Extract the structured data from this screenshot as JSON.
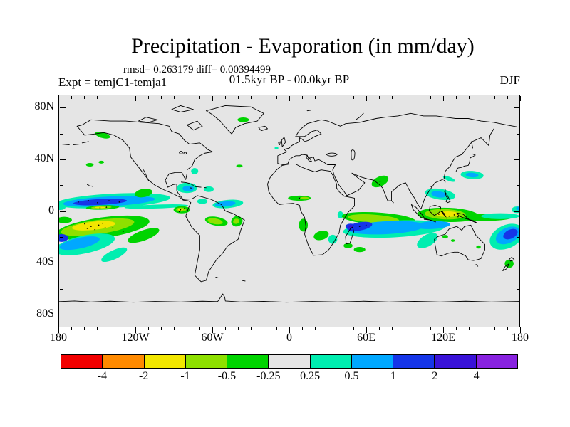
{
  "chart_data": {
    "type": "heatmap",
    "subtype": "filled_contour_world_map",
    "title": "Precipitation - Evaporation (in mm/day)",
    "stats_line": "rmsd= 0.263179 diff= 0.00394499",
    "experiment_label": "Expt = temjC1-temja1",
    "period_label": "01.5kyr BP - 00.0kyr BP",
    "season_label": "DJF",
    "units": "mm/day",
    "projection": "equirectangular",
    "lon_range": [
      -180,
      180
    ],
    "lat_range": [
      -90,
      90
    ],
    "map_background": "#e5e5e5",
    "grid": "off",
    "x_axis": {
      "minor_tick_step_deg": 10,
      "major_tick_step_deg": 60,
      "tick_labels": [
        {
          "label": "180",
          "lon": -180
        },
        {
          "label": "120W",
          "lon": -120
        },
        {
          "label": "60W",
          "lon": -60
        },
        {
          "label": "0",
          "lon": 0
        },
        {
          "label": "60E",
          "lon": 60
        },
        {
          "label": "120E",
          "lon": 120
        },
        {
          "label": "180",
          "lon": 180
        }
      ]
    },
    "y_axis": {
      "minor_tick_step_deg": 20,
      "major_tick_step_deg": 40,
      "tick_labels": [
        {
          "label": "80N",
          "lat": 80
        },
        {
          "label": "40N",
          "lat": 40
        },
        {
          "label": "0",
          "lat": 0
        },
        {
          "label": "40S",
          "lat": -40
        },
        {
          "label": "80S",
          "lat": -80
        }
      ]
    },
    "palette": {
      "red": "#f20000",
      "orange": "#ff8a00",
      "yellow": "#f2e600",
      "chartreuse": "#8ee000",
      "green": "#00d400",
      "neutral": "#e5e5e5",
      "cyan": "#00eeb0",
      "skyblue": "#00a8ff",
      "blue": "#1535e8",
      "indigo": "#3912d8",
      "violet": "#8822e0"
    },
    "colorbar": {
      "segment_colors": [
        "red",
        "orange",
        "yellow",
        "chartreuse",
        "green",
        "neutral",
        "cyan",
        "skyblue",
        "blue",
        "indigo",
        "violet"
      ],
      "boundary_labels": [
        "-4",
        "-2",
        "-1",
        "-0.5",
        "-0.25",
        "0.25",
        "0.5",
        "1",
        "2",
        "4"
      ],
      "bin_ranges": [
        "< -4",
        "-4 to -2",
        "-2 to -1",
        "-1 to -0.5",
        "-0.5 to -0.25",
        "-0.25 to 0.25",
        "0.25 to 0.5",
        "0.5 to 1",
        "1 to 2",
        "2 to 4",
        "> 4"
      ]
    },
    "color_to_bin": {
      "yellow": "-2 to -1",
      "chartreuse": "-1 to -0.5",
      "green": "-0.5 to -0.25",
      "cyan": "0.25 to 0.5",
      "skyblue": "0.5 to 1",
      "blue": "1 to 2",
      "indigo": "2 to 4"
    },
    "anomaly_regions": [
      {
        "lon": -138,
        "lat": 8,
        "rx": 45,
        "ry": 5.5,
        "rot": -3,
        "color": "cyan"
      },
      {
        "lon": -141,
        "lat": 7.5,
        "rx": 36,
        "ry": 3.8,
        "rot": -3,
        "color": "skyblue"
      },
      {
        "lon": -148,
        "lat": 7,
        "rx": 21,
        "ry": 2.3,
        "rot": -3,
        "color": "blue"
      },
      {
        "lon": -104,
        "lat": 3.5,
        "rx": 25,
        "ry": 1.5,
        "rot": -2,
        "color": "cyan"
      },
      {
        "lon": -146,
        "lat": 2.8,
        "rx": 13,
        "ry": 1.7,
        "rot": -2,
        "color": "green"
      },
      {
        "lon": -147,
        "lat": 2.8,
        "rx": 8,
        "ry": 1,
        "rot": -2,
        "color": "chartreuse"
      },
      {
        "lon": -148,
        "lat": 2.8,
        "rx": 4,
        "ry": 0.5,
        "rot": 0,
        "color": "yellow"
      },
      {
        "lon": -114,
        "lat": 14,
        "rx": 7,
        "ry": 3.2,
        "rot": -10,
        "color": "green"
      },
      {
        "lon": -84,
        "lat": 1,
        "rx": 6.5,
        "ry": 2.8,
        "rot": 0,
        "color": "green"
      },
      {
        "lon": -84.5,
        "lat": 1.2,
        "rx": 4,
        "ry": 1.6,
        "rot": 0,
        "color": "chartreuse"
      },
      {
        "lon": -85,
        "lat": 1.2,
        "rx": 2,
        "ry": 0.8,
        "rot": 0,
        "color": "yellow"
      },
      {
        "lon": -146,
        "lat": -13,
        "rx": 37,
        "ry": 8,
        "rot": -8,
        "color": "green"
      },
      {
        "lon": -150,
        "lat": -12.5,
        "rx": 29,
        "ry": 5.5,
        "rot": -8,
        "color": "chartreuse"
      },
      {
        "lon": -153,
        "lat": -11.5,
        "rx": 17,
        "ry": 3.2,
        "rot": -6,
        "color": "yellow"
      },
      {
        "lon": -114,
        "lat": -19,
        "rx": 13,
        "ry": 4,
        "rot": -20,
        "color": "green"
      },
      {
        "lon": -176,
        "lat": -7,
        "rx": 6,
        "ry": 2.5,
        "rot": 0,
        "color": "green"
      },
      {
        "lon": -160,
        "lat": -26,
        "rx": 24,
        "ry": 7,
        "rot": -12,
        "color": "cyan"
      },
      {
        "lon": -164,
        "lat": -25,
        "rx": 16,
        "ry": 4.2,
        "rot": -12,
        "color": "skyblue"
      },
      {
        "lon": -178,
        "lat": -21,
        "rx": 5,
        "ry": 3,
        "rot": 0,
        "color": "blue"
      },
      {
        "lon": -137,
        "lat": -34,
        "rx": 11,
        "ry": 3.5,
        "rot": -25,
        "color": "cyan"
      },
      {
        "lon": -179,
        "lat": 3,
        "rx": 4,
        "ry": 2.2,
        "rot": 0,
        "color": "cyan"
      },
      {
        "lon": -80,
        "lat": 18,
        "rx": 8,
        "ry": 4,
        "rot": 0,
        "color": "cyan"
      },
      {
        "lon": -79,
        "lat": 17.5,
        "rx": 4.5,
        "ry": 2.2,
        "rot": 0,
        "color": "skyblue"
      },
      {
        "lon": -63,
        "lat": 17,
        "rx": 4,
        "ry": 2.2,
        "rot": 0,
        "color": "cyan"
      },
      {
        "lon": -74,
        "lat": 31,
        "rx": 2.8,
        "ry": 2.5,
        "rot": 0,
        "color": "cyan"
      },
      {
        "lon": -48,
        "lat": 5.5,
        "rx": 12,
        "ry": 3.2,
        "rot": -5,
        "color": "cyan"
      },
      {
        "lon": -50,
        "lat": 5.5,
        "rx": 8,
        "ry": 2,
        "rot": -5,
        "color": "skyblue"
      },
      {
        "lon": -68,
        "lat": 7.5,
        "rx": 4,
        "ry": 2,
        "rot": 0,
        "color": "cyan"
      },
      {
        "lon": -57,
        "lat": -8,
        "rx": 9,
        "ry": 3.4,
        "rot": 10,
        "color": "green"
      },
      {
        "lon": -58,
        "lat": -8,
        "rx": 6,
        "ry": 2.2,
        "rot": 10,
        "color": "chartreuse"
      },
      {
        "lon": -41,
        "lat": -8,
        "rx": 4.5,
        "ry": 4,
        "rot": -20,
        "color": "green"
      },
      {
        "lon": -41.5,
        "lat": -8,
        "rx": 2.5,
        "ry": 2,
        "rot": -20,
        "color": "chartreuse"
      },
      {
        "lon": -156,
        "lat": 36,
        "rx": 3,
        "ry": 1.4,
        "rot": 0,
        "color": "green"
      },
      {
        "lon": -147,
        "lat": 38,
        "rx": 2.2,
        "ry": 1.1,
        "rot": 0,
        "color": "green"
      },
      {
        "lon": -146,
        "lat": 59,
        "rx": 6,
        "ry": 2.2,
        "rot": 15,
        "color": "green"
      },
      {
        "lon": -36,
        "lat": 71,
        "rx": 4.5,
        "ry": 1.8,
        "rot": 0,
        "color": "green"
      },
      {
        "lon": -39,
        "lat": 35,
        "rx": 2.5,
        "ry": 1.1,
        "rot": 0,
        "color": "green"
      },
      {
        "lon": -10,
        "lat": 49,
        "rx": 1.5,
        "ry": 1,
        "rot": 0,
        "color": "cyan"
      },
      {
        "lon": 8,
        "lat": 10,
        "rx": 9,
        "ry": 2,
        "rot": 0,
        "color": "green"
      },
      {
        "lon": 12,
        "lat": 10,
        "rx": 3.5,
        "ry": 1,
        "rot": 0,
        "color": "chartreuse"
      },
      {
        "lon": 11,
        "lat": -11,
        "rx": 3.5,
        "ry": 5,
        "rot": 0,
        "color": "green"
      },
      {
        "lon": 25,
        "lat": -19,
        "rx": 6,
        "ry": 3.5,
        "rot": -15,
        "color": "green"
      },
      {
        "lon": 34,
        "lat": -22,
        "rx": 3.5,
        "ry": 3.5,
        "rot": 0,
        "color": "cyan"
      },
      {
        "lon": 40,
        "lat": -3,
        "rx": 2.2,
        "ry": 2.8,
        "rot": 0,
        "color": "cyan"
      },
      {
        "lon": 71,
        "lat": 23,
        "rx": 7,
        "ry": 3.8,
        "rot": -25,
        "color": "green"
      },
      {
        "lon": 46,
        "lat": -27,
        "rx": 3.5,
        "ry": 2,
        "rot": 0,
        "color": "green"
      },
      {
        "lon": 55,
        "lat": -30,
        "rx": 4.5,
        "ry": 2,
        "rot": 0,
        "color": "green"
      },
      {
        "lon": 70,
        "lat": -6,
        "rx": 29,
        "ry": 4.8,
        "rot": 4,
        "color": "green"
      },
      {
        "lon": 66,
        "lat": -6,
        "rx": 20,
        "ry": 3.2,
        "rot": 4,
        "color": "chartreuse"
      },
      {
        "lon": 82,
        "lat": -14,
        "rx": 40,
        "ry": 6.5,
        "rot": -3,
        "color": "cyan"
      },
      {
        "lon": 76,
        "lat": -13,
        "rx": 30,
        "ry": 5,
        "rot": -3,
        "color": "skyblue"
      },
      {
        "lon": 55,
        "lat": -12,
        "rx": 10,
        "ry": 3.2,
        "rot": -10,
        "color": "blue"
      },
      {
        "lon": 48,
        "lat": -12,
        "rx": 4,
        "ry": 2.2,
        "rot": 0,
        "color": "blue"
      },
      {
        "lon": 48,
        "lat": -12,
        "rx": 2,
        "ry": 1.2,
        "rot": 0,
        "color": "indigo"
      },
      {
        "lon": 108,
        "lat": -23,
        "rx": 9,
        "ry": 4.5,
        "rot": -30,
        "color": "cyan"
      },
      {
        "lon": 124,
        "lat": -3,
        "rx": 24,
        "ry": 5.5,
        "rot": 2,
        "color": "green"
      },
      {
        "lon": 150,
        "lat": -5,
        "rx": 24,
        "ry": 2.8,
        "rot": 0,
        "color": "green"
      },
      {
        "lon": 122,
        "lat": -2.5,
        "rx": 16,
        "ry": 4,
        "rot": 2,
        "color": "chartreuse"
      },
      {
        "lon": 124,
        "lat": -2.5,
        "rx": 9,
        "ry": 2.2,
        "rot": 0,
        "color": "yellow"
      },
      {
        "lon": 118,
        "lat": 13,
        "rx": 12,
        "ry": 4.2,
        "rot": 8,
        "color": "cyan"
      },
      {
        "lon": 117,
        "lat": 13,
        "rx": 6,
        "ry": 2.4,
        "rot": 8,
        "color": "skyblue"
      },
      {
        "lon": 143,
        "lat": 28,
        "rx": 9,
        "ry": 3.2,
        "rot": 4,
        "color": "cyan"
      },
      {
        "lon": 143,
        "lat": 28,
        "rx": 5,
        "ry": 1.8,
        "rot": 4,
        "color": "skyblue"
      },
      {
        "lon": 112,
        "lat": -11,
        "rx": 14,
        "ry": 3,
        "rot": -3,
        "color": "skyblue"
      },
      {
        "lon": 165,
        "lat": -4,
        "rx": 15,
        "ry": 2.3,
        "rot": 0,
        "color": "cyan"
      },
      {
        "lon": 170,
        "lat": -20,
        "rx": 14,
        "ry": 9,
        "rot": -25,
        "color": "cyan"
      },
      {
        "lon": 171,
        "lat": -19,
        "rx": 10,
        "ry": 6,
        "rot": -25,
        "color": "skyblue"
      },
      {
        "lon": 173,
        "lat": -18,
        "rx": 6,
        "ry": 3.5,
        "rot": -25,
        "color": "blue"
      },
      {
        "lon": 125,
        "lat": 25,
        "rx": 5,
        "ry": 1.6,
        "rot": 20,
        "color": "cyan"
      },
      {
        "lon": 122,
        "lat": -20,
        "rx": 2.2,
        "ry": 1.4,
        "rot": 0,
        "color": "green"
      },
      {
        "lon": 128,
        "lat": -23,
        "rx": 1.6,
        "ry": 1,
        "rot": 0,
        "color": "green"
      },
      {
        "lon": 148,
        "lat": -28,
        "rx": 1.8,
        "ry": 1.2,
        "rot": 0,
        "color": "green"
      },
      {
        "lon": 172,
        "lat": -41,
        "rx": 3.5,
        "ry": 3.2,
        "rot": 0,
        "color": "green"
      },
      {
        "lon": 178,
        "lat": 1,
        "rx": 4,
        "ry": 2.6,
        "rot": 0,
        "color": "cyan"
      },
      {
        "lon": 179.5,
        "lat": 2,
        "rx": 2.2,
        "ry": 1.4,
        "rot": 0,
        "color": "skyblue"
      }
    ],
    "stipple_points": [
      [
        -165,
        7
      ],
      [
        -157,
        8
      ],
      [
        -150,
        6.5
      ],
      [
        -141,
        8
      ],
      [
        -133,
        7
      ],
      [
        -160,
        -10
      ],
      [
        -155,
        -12
      ],
      [
        -149,
        -11
      ],
      [
        -144,
        -13
      ],
      [
        -152,
        -14.5
      ],
      [
        -158,
        -13.5
      ],
      [
        -146,
        -9.5
      ],
      [
        -138,
        -13
      ],
      [
        -130,
        -16
      ],
      [
        -148,
        2.5
      ],
      [
        -143,
        3
      ],
      [
        -85,
        1
      ],
      [
        -82,
        2
      ],
      [
        -86,
        -0.5
      ],
      [
        117,
        -2.5
      ],
      [
        121,
        -2
      ],
      [
        125,
        -4
      ],
      [
        129,
        -3
      ],
      [
        123,
        -5.5
      ],
      [
        119,
        -0.5
      ],
      [
        132,
        -4.5
      ],
      [
        55,
        -12
      ],
      [
        60,
        -11
      ],
      [
        50,
        -11.5
      ],
      [
        8,
        10
      ],
      [
        71,
        23
      ]
    ]
  }
}
